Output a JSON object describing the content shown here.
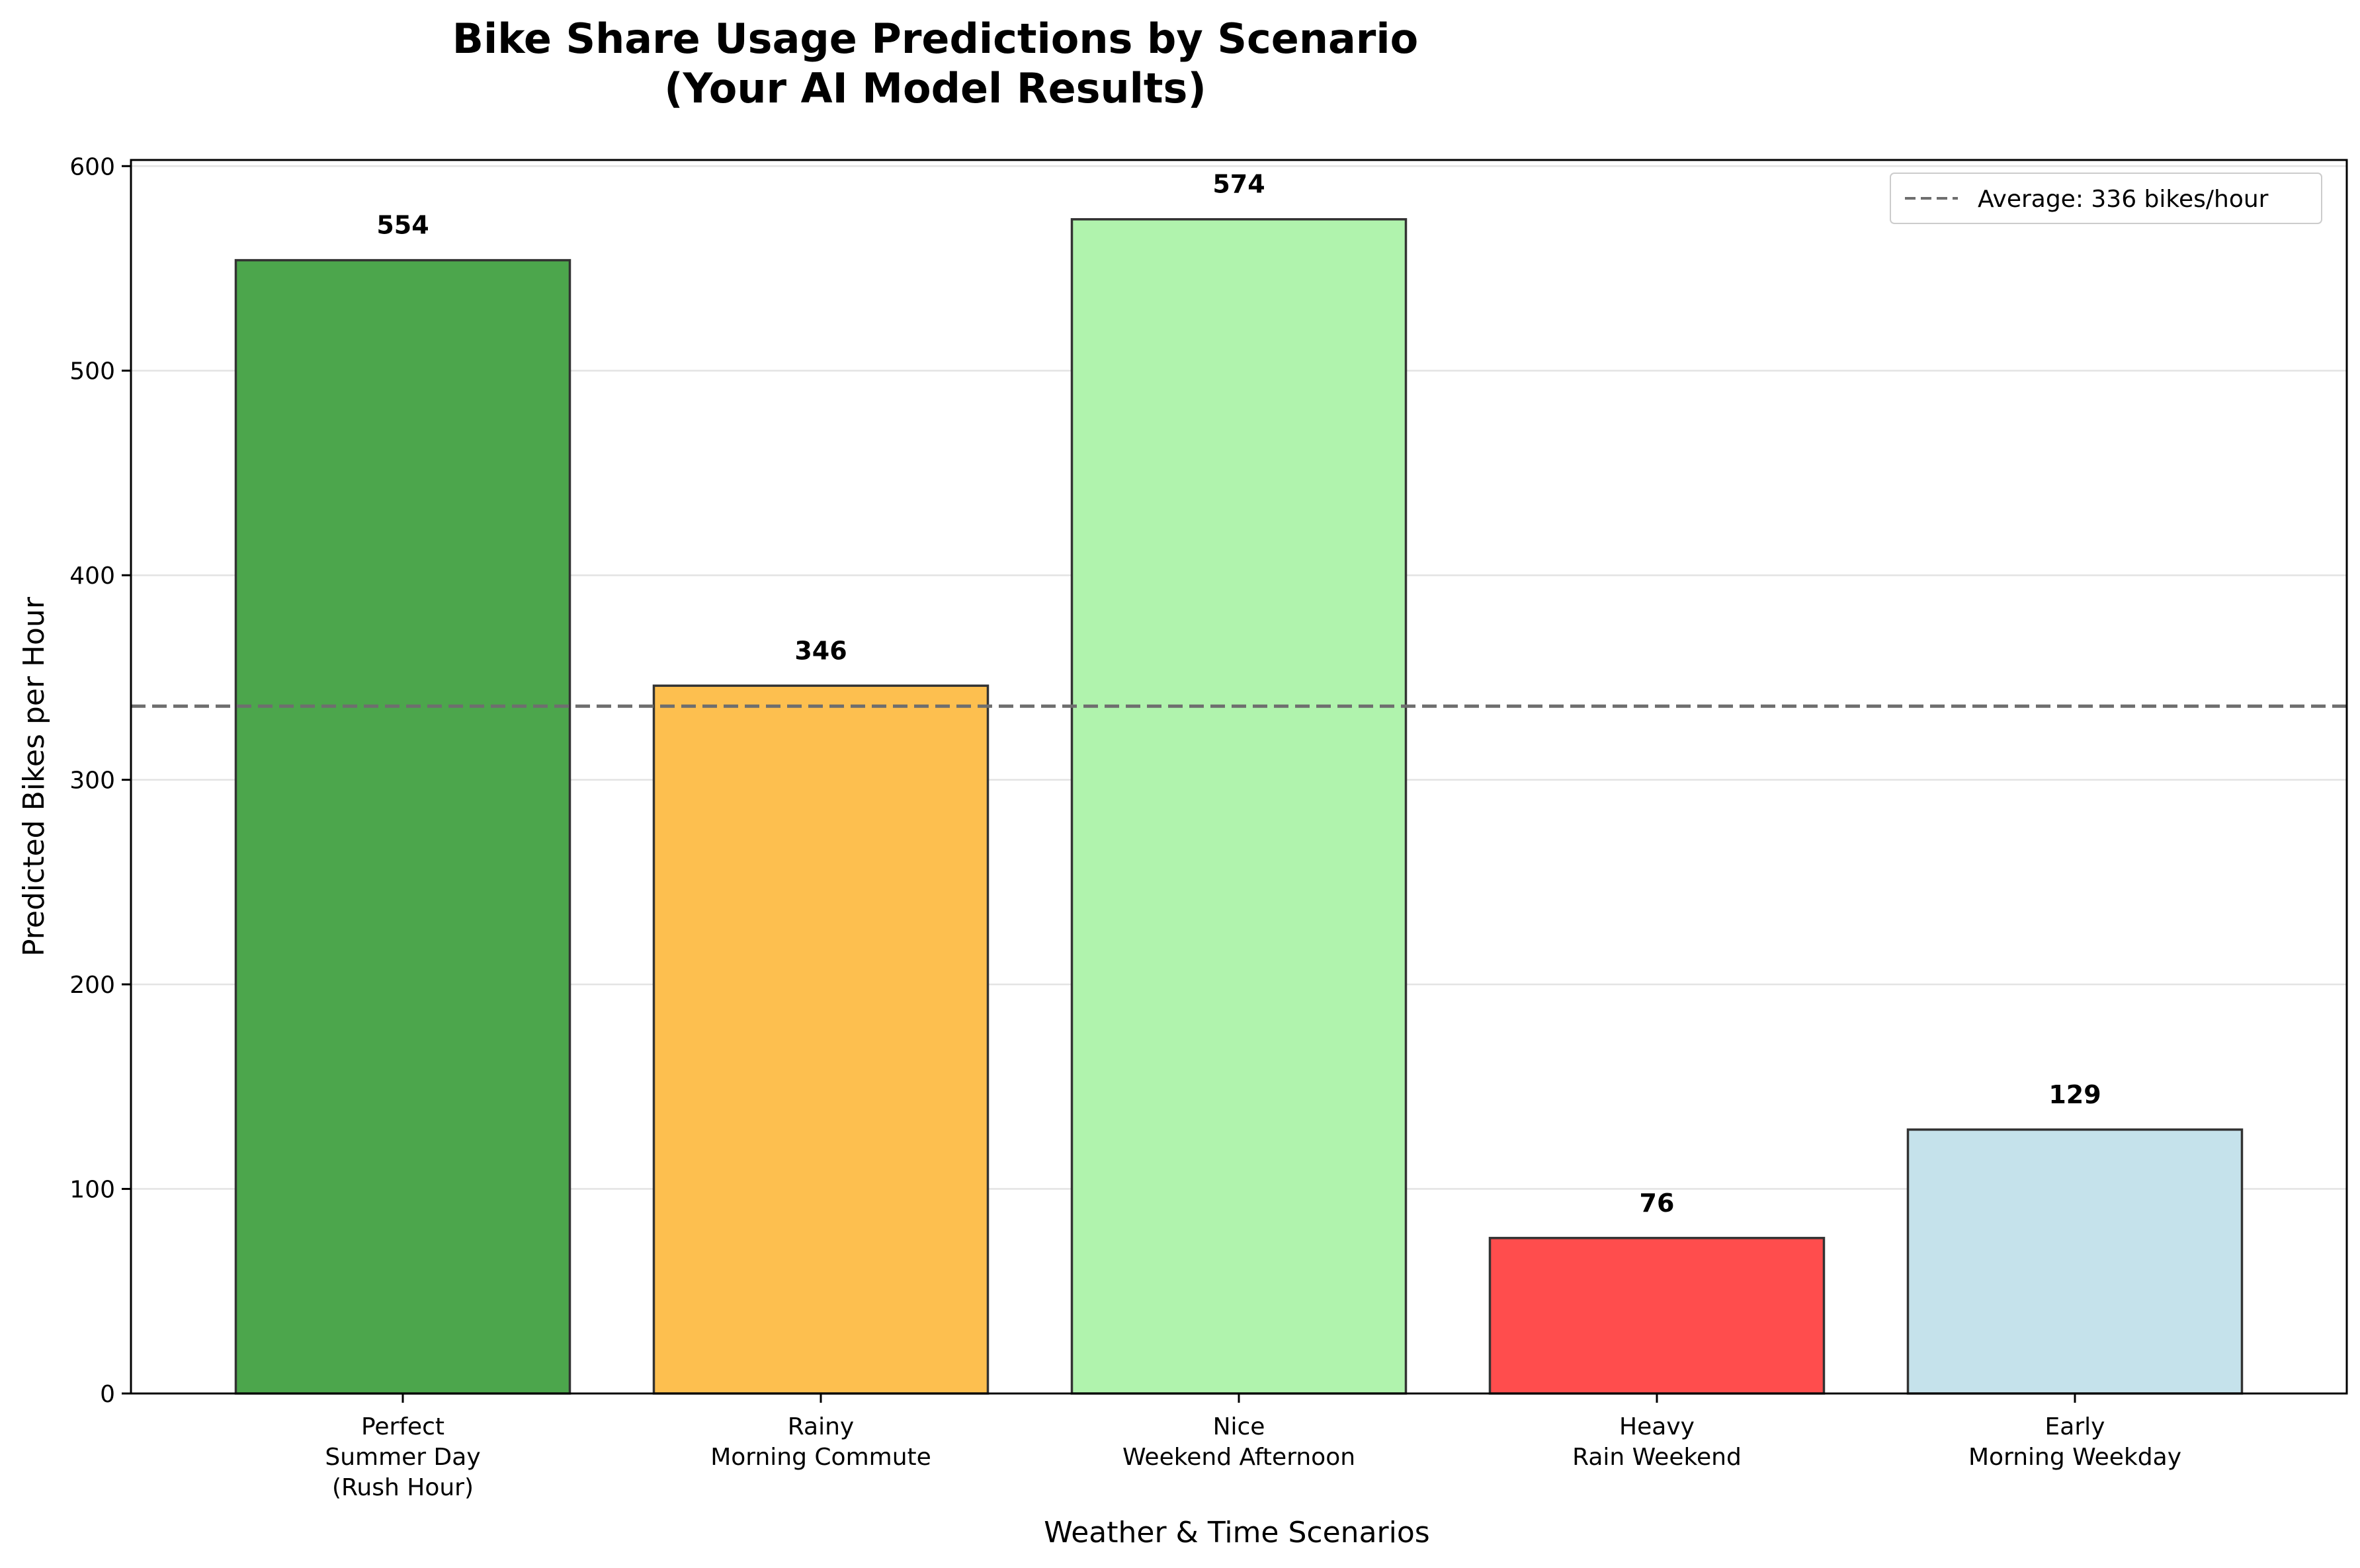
{
  "chart_data": {
    "type": "bar",
    "title_lines": [
      "Bike Share Usage Predictions by Scenario",
      "(Your AI Model Results)"
    ],
    "xlabel": "Weather & Time Scenarios",
    "ylabel": "Predicted Bikes per Hour",
    "categories": [
      [
        "Perfect",
        "Summer Day",
        "(Rush Hour)"
      ],
      [
        "Rainy",
        "Morning Commute"
      ],
      [
        "Nice",
        "Weekend Afternoon"
      ],
      [
        "Heavy",
        "Rain Weekend"
      ],
      [
        "Early",
        "Morning Weekday"
      ]
    ],
    "values": [
      554,
      346,
      574,
      76,
      129
    ],
    "value_labels": [
      "554",
      "346",
      "574",
      "76",
      "129"
    ],
    "colors": [
      "#4ca64c",
      "#fdbf4f",
      "#b0f3ad",
      "#ff4d4d",
      "#c5e2eb"
    ],
    "ylim": [
      0,
      603
    ],
    "yticks": [
      0,
      100,
      200,
      300,
      400,
      500,
      600
    ],
    "grid": "horizontal",
    "reference_line": {
      "value": 336,
      "label": "Average: 336 bikes/hour",
      "style": "dashed",
      "color": "#6e6e6e"
    },
    "legend_position": "top-right"
  }
}
